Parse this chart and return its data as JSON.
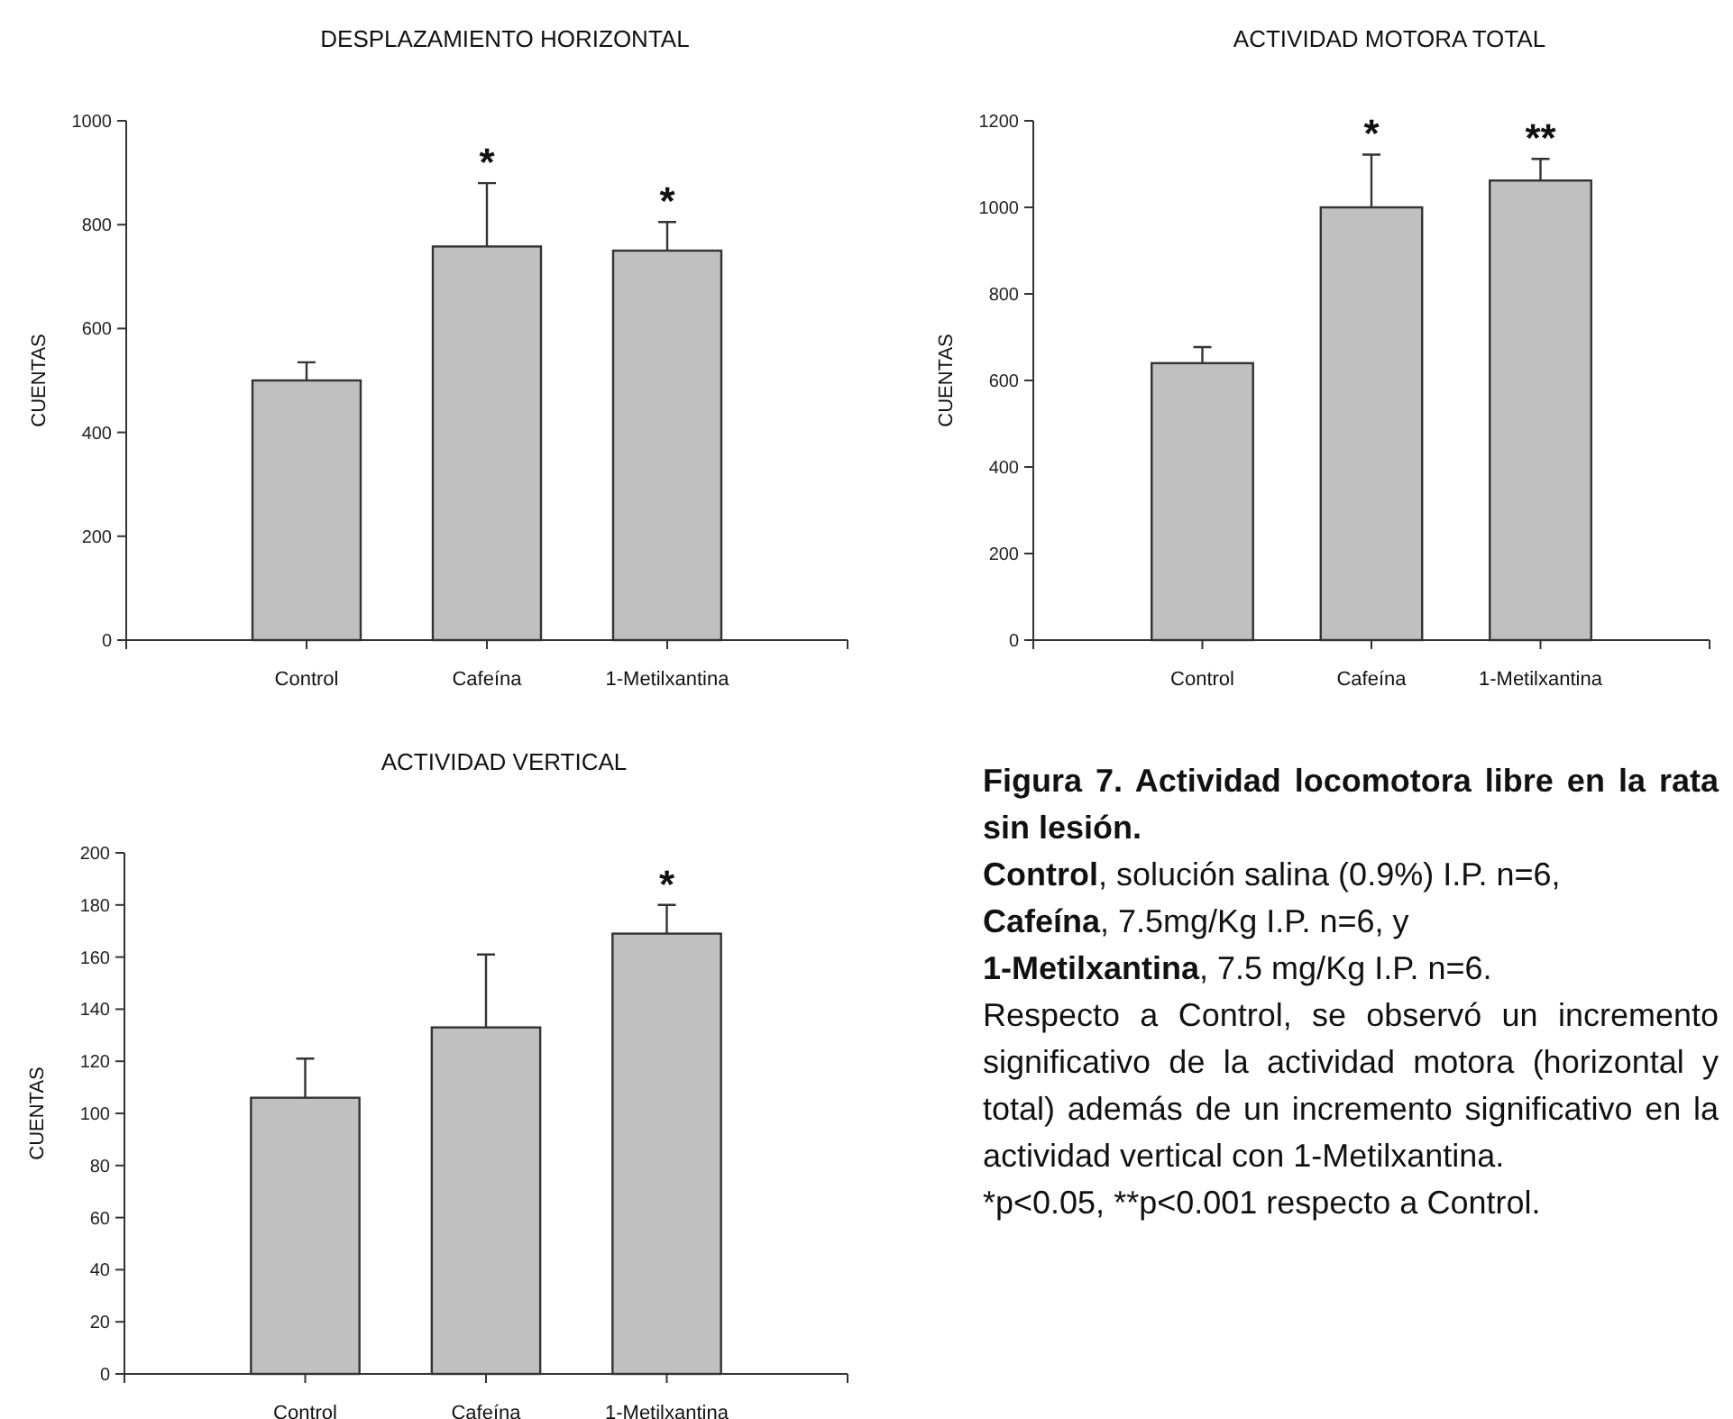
{
  "chart_data": [
    {
      "type": "bar",
      "title": "DESPLAZAMIENTO HORIZONTAL",
      "ylabel": "CUENTAS",
      "categories": [
        "Control",
        "Cafeína",
        "1-Metilxantina"
      ],
      "values": [
        500,
        758,
        750
      ],
      "errors": [
        [
          500,
          535
        ],
        [
          758,
          880
        ],
        [
          750,
          805
        ]
      ],
      "value_labels": [
        null,
        "*",
        "*"
      ],
      "color": "#c0c0c0",
      "ylim": [
        0,
        1000
      ],
      "yticks": [
        0,
        200,
        400,
        600,
        800,
        1000
      ]
    },
    {
      "type": "bar",
      "title": "ACTIVIDAD MOTORA TOTAL",
      "ylabel": "CUENTAS",
      "categories": [
        "Control",
        "Cafeína",
        "1-Metilxantina"
      ],
      "values": [
        640,
        1000,
        1062
      ],
      "errors": [
        [
          640,
          677
        ],
        [
          1000,
          1122
        ],
        [
          1062,
          1112
        ]
      ],
      "value_labels": [
        null,
        "*",
        "**"
      ],
      "color": "#c0c0c0",
      "ylim": [
        0,
        1200
      ],
      "yticks": [
        0,
        200,
        400,
        600,
        800,
        1000,
        1200
      ]
    },
    {
      "type": "bar",
      "title": "ACTIVIDAD VERTICAL",
      "ylabel": "CUENTAS",
      "categories": [
        "Control",
        "Cafeína",
        "1-Metilxantina"
      ],
      "values": [
        106,
        133,
        169
      ],
      "errors": [
        [
          106,
          121
        ],
        [
          133,
          161
        ],
        [
          169,
          180
        ]
      ],
      "value_labels": [
        null,
        null,
        "*"
      ],
      "color": "#c0c0c0",
      "ylim": [
        0,
        200
      ],
      "yticks": [
        0,
        20,
        40,
        60,
        80,
        100,
        120,
        140,
        160,
        180,
        200
      ]
    },
    {
      "type": "other",
      "title": "Figura 7. Actividad locomotora libre en la rata sin lesión.",
      "annotations": [
        "Control, solución salina (0.9%) I.P. n=6,",
        "Cafeína, 7.5mg/Kg I.P. n=6, y",
        "1-Metilxantina, 7.5 mg/Kg I.P. n=6.",
        "Respecto a Control, se observó un incremento significativo de la actividad motora (horizontal y total) además de un incremento significativo en la actividad vertical con 1-Metilxantina.",
        "*p<0.05, **p<0.001 respecto a Control."
      ]
    }
  ]
}
